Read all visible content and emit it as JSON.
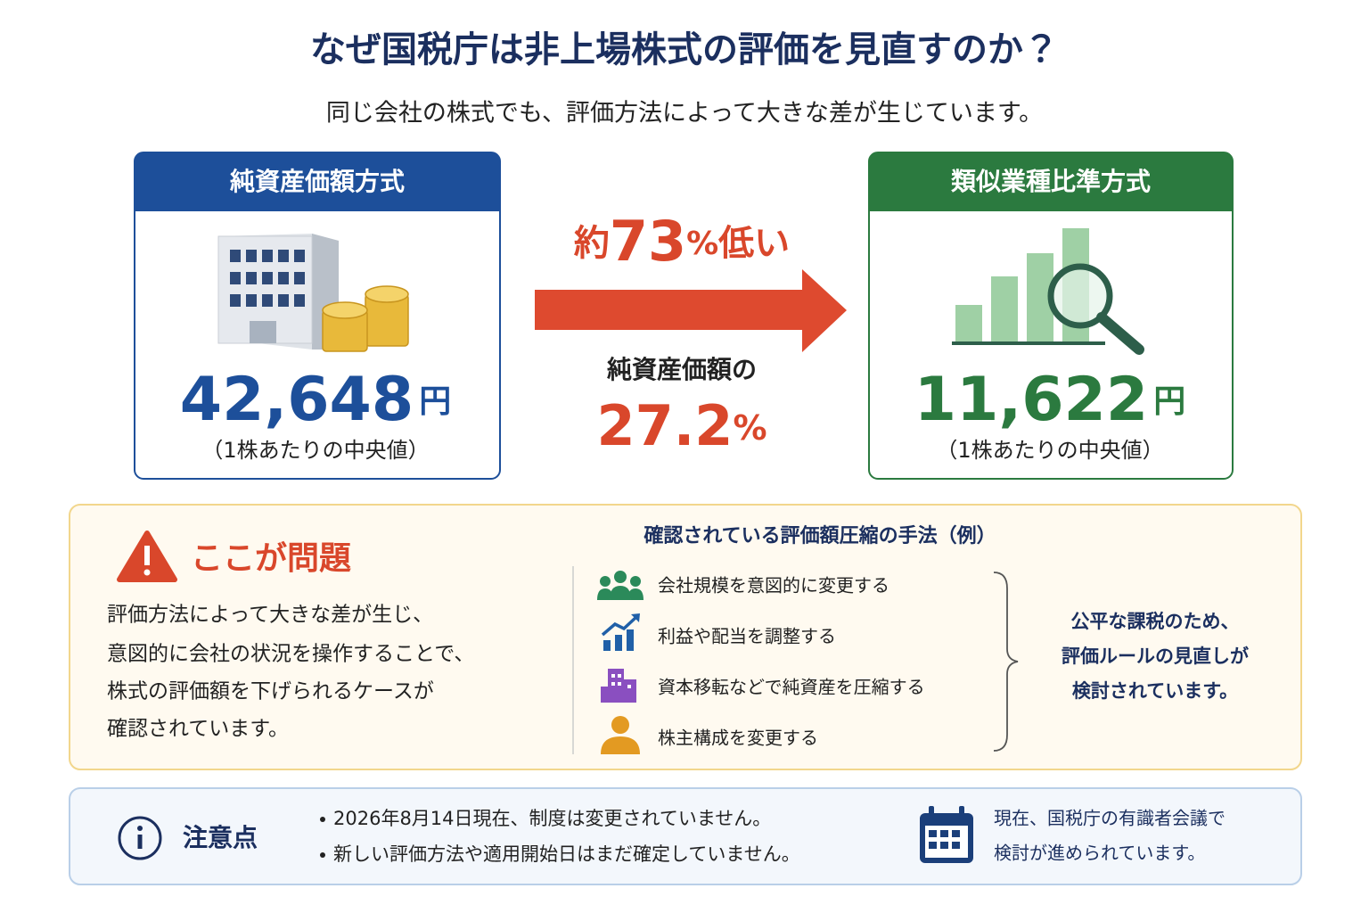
{
  "header": {
    "title": "なぜ国税庁は非上場株式の評価を見直すのか？",
    "subtitle": "同じ会社の株式でも、評価方法によって大きな差が生じています。"
  },
  "left_card": {
    "title": "純資産価額方式",
    "amount": "42,648",
    "unit": "円",
    "note": "（1株あたりの中央値）"
  },
  "comparison": {
    "prefix": "約",
    "percent": "73",
    "percent_sign": "%",
    "suffix": "低い",
    "ratio_label": "純資産価額の",
    "ratio": "27.2",
    "ratio_sign": "%"
  },
  "right_card": {
    "title": "類似業種比準方式",
    "amount": "11,622",
    "unit": "円",
    "note": "（1株あたりの中央値）"
  },
  "problem": {
    "title": "ここが問題",
    "lines": [
      "評価方法によって大きな差が生じ、",
      "意図的に会社の状況を操作することで、",
      "株式の評価額を下げられるケースが",
      "確認されています。"
    ]
  },
  "methods": {
    "title": "確認されている評価額圧縮の手法（例）",
    "items": [
      "会社規模を意図的に変更する",
      "利益や配当を調整する",
      "資本移転などで純資産を圧縮する",
      "株主構成を変更する"
    ],
    "conclusion": [
      "公平な課税のため、",
      "評価ルールの見直しが",
      "検討されています。"
    ]
  },
  "notice": {
    "title": "注意点",
    "items": [
      "2026年8月14日現在、制度は変更されていません。",
      "新しい評価方法や適用開始日はまだ確定していません。"
    ],
    "status": [
      "現在、国税庁の有識者会議で",
      "検討が進められています。"
    ]
  }
}
